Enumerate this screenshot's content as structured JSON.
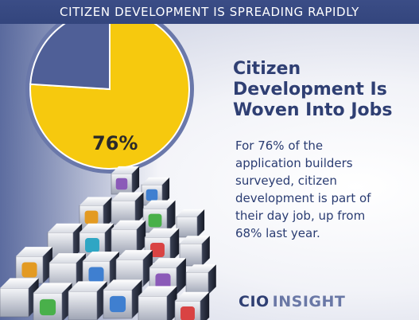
{
  "banner": {
    "text": "CITIZEN DEVELOPMENT IS SPREADING RAPIDLY"
  },
  "chart_data": {
    "type": "pie",
    "slices": [
      {
        "label": "76%",
        "value": 76,
        "color": "#f6c90e"
      },
      {
        "label": "",
        "value": 24,
        "color": "#4f5f97"
      }
    ]
  },
  "headline": {
    "line1": "Citizen",
    "line2": "Development Is",
    "line3": "Woven Into Jobs"
  },
  "body": {
    "line1": "For 76% of the",
    "line2": "application builders",
    "line3": "surveyed, citizen",
    "line4": "development is part of",
    "line5": "their day job, up from",
    "line6": "68% last year."
  },
  "logo": {
    "part1": "CIO",
    "part2": "INSIGHT"
  }
}
